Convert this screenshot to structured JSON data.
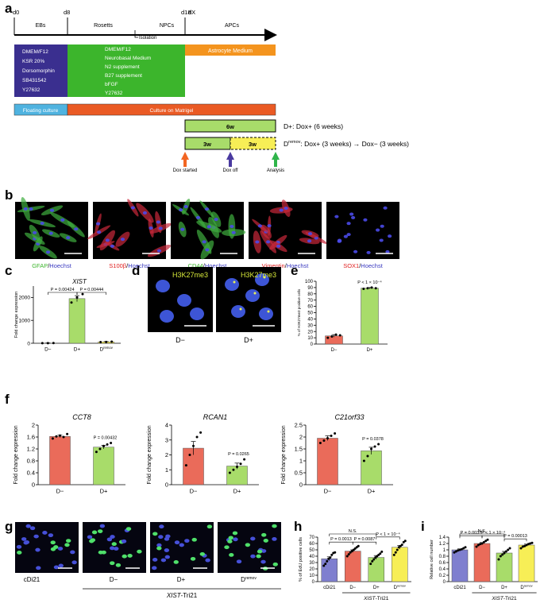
{
  "panel_labels": [
    "a",
    "b",
    "c",
    "d",
    "e",
    "f",
    "g",
    "h",
    "i"
  ],
  "timeline": {
    "days": [
      "d0",
      "d8",
      "d18",
      "dX"
    ],
    "stages": [
      "EBs",
      "Rosetts",
      "NPCs",
      "APCs"
    ],
    "isolation": "Isolation",
    "media1": [
      "DMEM/F12",
      "KSR 20%",
      "Dorsomorphin",
      "SB431542",
      "Y27632"
    ],
    "media2": [
      "DMEM/F12",
      "Neurobasal Medium",
      "N2 supplement",
      "B27 supplement",
      "bFGF",
      "Y27632"
    ],
    "media3": "Astrocyte Medium",
    "culture1": "Floating culture",
    "culture2": "Culture on Matrigel",
    "box_6w": "6w",
    "box_3w_a": "3w",
    "box_3w_b": "3w",
    "dplus_label": "D+: Dox+ (6 weeks)",
    "dremov_label": "D",
    "dremov_sup": "remov",
    "dremov_rest": ": Dox+ (3 weeks) → Dox− (3 weeks)",
    "arrow_start": "Dox started",
    "arrow_off": "Dox off",
    "arrow_analysis": "Analysis",
    "colors": {
      "navy": "#3a2f8f",
      "green": "#3cb52c",
      "orange": "#f4941e",
      "sky": "#4fb3e0",
      "red": "#ea5a24",
      "light_green": "#a8dc6a",
      "yellow": "#f7ee56",
      "arrow_orange": "#f26522",
      "arrow_purple": "#4a3aa0",
      "arrow_green": "#2fb44a"
    }
  },
  "images_b": [
    {
      "marker": "GFAP",
      "sep": "/",
      "counter": "Hoechst",
      "marker_color": "#3cb52c"
    },
    {
      "marker": "S100β",
      "sep": "/",
      "counter": "Hoechst",
      "marker_color": "#e02020"
    },
    {
      "marker": "CD44",
      "sep": "/",
      "counter": "Hoechst",
      "marker_color": "#3cb52c"
    },
    {
      "marker": "Vimentin",
      "sep": "/",
      "counter": "Hoechst",
      "marker_color": "#e02020"
    },
    {
      "marker": "SOX1",
      "sep": "/",
      "counter": "Hoechst",
      "marker_color": "#e02020"
    }
  ],
  "panel_d": {
    "stain": "H3K27me3",
    "labels": [
      "D−",
      "D+"
    ]
  },
  "panel_g": {
    "labels": [
      "cDi21",
      "D−",
      "D+",
      "D"
    ],
    "last_sup": "remov",
    "group": "XIST-Tri21"
  },
  "chart_data": [
    {
      "panel": "c",
      "type": "bar",
      "title": "XIST",
      "ylabel": "Fold change expression",
      "categories": [
        "D−",
        "D+",
        "D"
      ],
      "category_sup": [
        "",
        "",
        "remov"
      ],
      "values": [
        8,
        1950,
        60
      ],
      "errors": [
        3,
        130,
        12
      ],
      "ylim": [
        0,
        2500
      ],
      "yticks": [
        "0",
        "1000",
        "2000"
      ],
      "ytick_values": [
        0,
        1000,
        2000
      ],
      "colors": [
        "#ea6b5a",
        "#a8dc6a",
        "#f7ee56"
      ],
      "points": [
        [
          3,
          6,
          9
        ],
        [
          1780,
          2000,
          2150
        ],
        [
          50,
          55,
          70
        ]
      ],
      "annotations": [
        {
          "text": "P = 0.00424",
          "from": 0,
          "to": 1
        },
        {
          "text": "P = 0.00444",
          "from": 1,
          "to": 2
        }
      ]
    },
    {
      "panel": "e",
      "type": "bar",
      "title": "",
      "ylabel": "% of H3K27me3 positive cells",
      "categories": [
        "D−",
        "D+"
      ],
      "values": [
        13,
        89
      ],
      "errors": [
        2,
        1
      ],
      "ylim": [
        0,
        100
      ],
      "yticks": [
        "0",
        "10",
        "20",
        "30",
        "40",
        "50",
        "60",
        "70",
        "80",
        "90",
        "100"
      ],
      "ytick_values": [
        0,
        10,
        20,
        30,
        40,
        50,
        60,
        70,
        80,
        90,
        100
      ],
      "colors": [
        "#ea6b5a",
        "#a8dc6a"
      ],
      "points": [
        [
          10,
          12,
          15,
          14
        ],
        [
          88,
          89,
          90,
          89
        ]
      ],
      "annotations": [
        {
          "text": "P < 1 × 10⁻⁴",
          "from": 1,
          "to": 1
        }
      ]
    },
    {
      "panel": "f1",
      "type": "bar",
      "title": "CCT8",
      "ylabel": "Fold change expression",
      "categories": [
        "D−",
        "D+"
      ],
      "values": [
        1.62,
        1.26
      ],
      "errors": [
        0.04,
        0.06
      ],
      "ylim": [
        0,
        2
      ],
      "yticks": [
        "0",
        "0.4",
        "0.8",
        "1.2",
        "1.6",
        "2"
      ],
      "ytick_values": [
        0,
        0.4,
        0.8,
        1.2,
        1.6,
        2
      ],
      "colors": [
        "#ea6b5a",
        "#a8dc6a"
      ],
      "points": [
        [
          1.55,
          1.62,
          1.65,
          1.6,
          1.7
        ],
        [
          1.1,
          1.2,
          1.3,
          1.35,
          1.4
        ]
      ],
      "annotations": [
        {
          "text": "P = 0.00432",
          "from": 1,
          "to": 1
        }
      ]
    },
    {
      "panel": "f2",
      "type": "bar",
      "title": "RCAN1",
      "ylabel": "Fold change expression",
      "categories": [
        "D−",
        "D+"
      ],
      "values": [
        2.45,
        1.25
      ],
      "errors": [
        0.45,
        0.2
      ],
      "ylim": [
        0,
        4
      ],
      "yticks": [
        "0",
        "1",
        "2",
        "3",
        "4"
      ],
      "ytick_values": [
        0,
        1,
        2,
        3,
        4
      ],
      "colors": [
        "#ea6b5a",
        "#a8dc6a"
      ],
      "points": [
        [
          1.3,
          2.0,
          2.6,
          3.2,
          3.5
        ],
        [
          0.8,
          1.0,
          1.2,
          1.4,
          1.7
        ]
      ],
      "annotations": [
        {
          "text": "P = 0.0265",
          "from": 1,
          "to": 1
        }
      ]
    },
    {
      "panel": "f3",
      "type": "bar",
      "title": "C21orf33",
      "ylabel": "Fold change expression",
      "categories": [
        "D−",
        "D+"
      ],
      "values": [
        1.95,
        1.42
      ],
      "errors": [
        0.1,
        0.15
      ],
      "ylim": [
        0,
        2.5
      ],
      "yticks": [
        "0",
        "0.5",
        "1",
        "1.5",
        "2",
        "2.5"
      ],
      "ytick_values": [
        0,
        0.5,
        1,
        1.5,
        2,
        2.5
      ],
      "colors": [
        "#ea6b5a",
        "#a8dc6a"
      ],
      "points": [
        [
          1.75,
          1.85,
          1.95,
          2.05,
          2.15
        ],
        [
          1.0,
          1.2,
          1.5,
          1.6,
          1.7
        ]
      ],
      "annotations": [
        {
          "text": "P = 0.0378",
          "from": 1,
          "to": 1
        }
      ]
    },
    {
      "panel": "h",
      "type": "bar",
      "title": "",
      "ylabel": "% of EdU positive cells",
      "categories": [
        "cDi21",
        "D−",
        "D+",
        "D"
      ],
      "category_sup": [
        "",
        "",
        "",
        "remov"
      ],
      "group_label": "XIST-Tri21",
      "values": [
        36,
        48,
        38,
        54
      ],
      "errors": [
        3,
        2,
        3,
        3
      ],
      "ylim": [
        0,
        70
      ],
      "yticks": [
        "0",
        "10",
        "20",
        "30",
        "40",
        "50",
        "60",
        "70"
      ],
      "ytick_values": [
        0,
        10,
        20,
        30,
        40,
        50,
        60,
        70
      ],
      "colors": [
        "#7f7fcf",
        "#ea6b5a",
        "#a8dc6a",
        "#f7ee56"
      ],
      "points": [
        [
          25,
          28,
          32,
          36,
          38,
          42,
          45,
          46
        ],
        [
          40,
          43,
          46,
          48,
          50,
          52,
          54,
          56
        ],
        [
          28,
          32,
          35,
          38,
          40,
          42,
          44,
          47
        ],
        [
          42,
          46,
          50,
          54,
          56,
          58,
          62,
          64
        ]
      ],
      "annotations": [
        {
          "text": "P = 0.0013",
          "from": 0,
          "to": 1
        },
        {
          "text": "P = 0.0087",
          "from": 1,
          "to": 2
        },
        {
          "text": "P < 1 × 10⁻⁴",
          "from": 2,
          "to": 3
        },
        {
          "text": "N.S.",
          "from": 0,
          "to": 2
        }
      ]
    },
    {
      "panel": "i",
      "type": "bar",
      "title": "",
      "ylabel": "Relative cell number",
      "categories": [
        "cDi21",
        "D−",
        "D+",
        "D"
      ],
      "category_sup": [
        "",
        "",
        "",
        "remov"
      ],
      "group_label": "XIST-Tri21",
      "values": [
        1.0,
        1.2,
        0.9,
        1.15
      ],
      "errors": [
        0.03,
        0.03,
        0.05,
        0.03
      ],
      "ylim": [
        0,
        1.4
      ],
      "yticks": [
        "0",
        "0.2",
        "0.4",
        "0.6",
        "0.8",
        "1",
        "1.2",
        "1.4"
      ],
      "ytick_values": [
        0,
        0.2,
        0.4,
        0.6,
        0.8,
        1,
        1.2,
        1.4
      ],
      "colors": [
        "#7f7fcf",
        "#ea6b5a",
        "#a8dc6a",
        "#f7ee56"
      ],
      "points": [
        [
          0.92,
          0.95,
          0.98,
          1.0,
          1.02,
          1.05,
          1.08
        ],
        [
          1.1,
          1.15,
          1.18,
          1.2,
          1.24,
          1.28,
          1.32
        ],
        [
          0.7,
          0.8,
          0.85,
          0.9,
          0.95,
          1.0,
          1.05
        ],
        [
          1.05,
          1.1,
          1.12,
          1.15,
          1.18,
          1.2,
          1.22
        ]
      ],
      "annotations": [
        {
          "text": "P = 0.0037",
          "from": 0,
          "to": 1
        },
        {
          "text": "P < 1 × 10⁻⁴",
          "from": 1,
          "to": 2
        },
        {
          "text": "P = 0.00013",
          "from": 2,
          "to": 3
        },
        {
          "text": "N.S.",
          "from": 0,
          "to": 2
        }
      ]
    }
  ]
}
